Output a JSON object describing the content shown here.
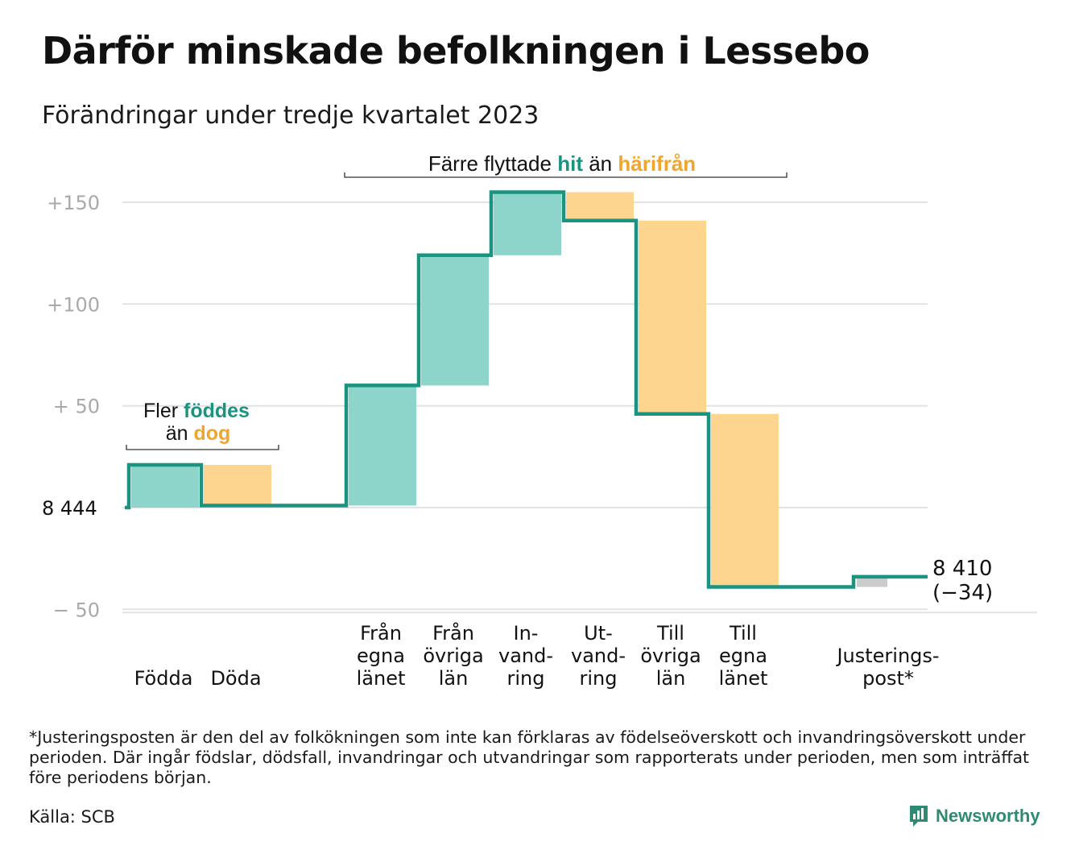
{
  "title": "Därför minskade befolkningen i Lessebo",
  "subtitle": "Förändringar under tredje kvartalet 2023",
  "chart_data": {
    "type": "waterfall",
    "start_value": 8444,
    "start_label": "8  444",
    "end_value": 8410,
    "end_label_line1": "8 410",
    "end_label_line2": "(−34)",
    "ylim": [
      -60,
      160
    ],
    "yticks": [
      {
        "value": 150,
        "label": "+150"
      },
      {
        "value": 100,
        "label": "+100"
      },
      {
        "value": 50,
        "label": "+  50"
      },
      {
        "value": 0,
        "label": ""
      },
      {
        "value": -50,
        "label": "−  50"
      }
    ],
    "colors": {
      "increase": "#8dd5cb",
      "decrease": "#fdd58f",
      "adjustment": "#cccccc",
      "line": "#1a9480",
      "hit": "#1a9480",
      "harifran": "#f0a52e"
    },
    "steps": [
      {
        "label_lines": [
          "Födda"
        ],
        "delta": 21,
        "kind": "increase"
      },
      {
        "label_lines": [
          "Döda"
        ],
        "delta": -20,
        "kind": "decrease"
      },
      {
        "label_lines": [],
        "delta": 0,
        "kind": "gap"
      },
      {
        "label_lines": [
          "Från",
          "egna",
          "länet"
        ],
        "delta": 59,
        "kind": "increase"
      },
      {
        "label_lines": [
          "Från",
          "övriga",
          "län"
        ],
        "delta": 64,
        "kind": "increase"
      },
      {
        "label_lines": [
          "In-",
          "vand-",
          "ring"
        ],
        "delta": 31,
        "kind": "increase"
      },
      {
        "label_lines": [
          "Ut-",
          "vand-",
          "ring"
        ],
        "delta": -14,
        "kind": "decrease"
      },
      {
        "label_lines": [
          "Till",
          "övriga",
          "län"
        ],
        "delta": -95,
        "kind": "decrease"
      },
      {
        "label_lines": [
          "Till",
          "egna",
          "länet"
        ],
        "delta": -85,
        "kind": "decrease"
      },
      {
        "label_lines": [],
        "delta": 0,
        "kind": "gap"
      },
      {
        "label_lines": [
          "Justerings-",
          "post*"
        ],
        "delta": 5,
        "kind": "adjustment"
      }
    ],
    "annotations": {
      "births": {
        "line1_prefix": "Fler ",
        "line1_highlight": "föddes",
        "line2_prefix": "än ",
        "line2_highlight": "dog"
      },
      "migration": {
        "prefix": "Färre flyttade ",
        "highlight1": "hit",
        "middle": " än ",
        "highlight2": "härifrån"
      }
    }
  },
  "footnote": "*Justeringsposten är den del av folkökningen som inte kan förklaras av födelseöverskott och invandringsöverskott under perioden. Där ingår födslar, dödsfall, invandringar och utvandringar som rapporterats under perioden, men som inträffat före periodens början.",
  "source": "Källa: SCB",
  "brand": "Newsworthy",
  "brand_icon": "bar-chart-chat-icon"
}
